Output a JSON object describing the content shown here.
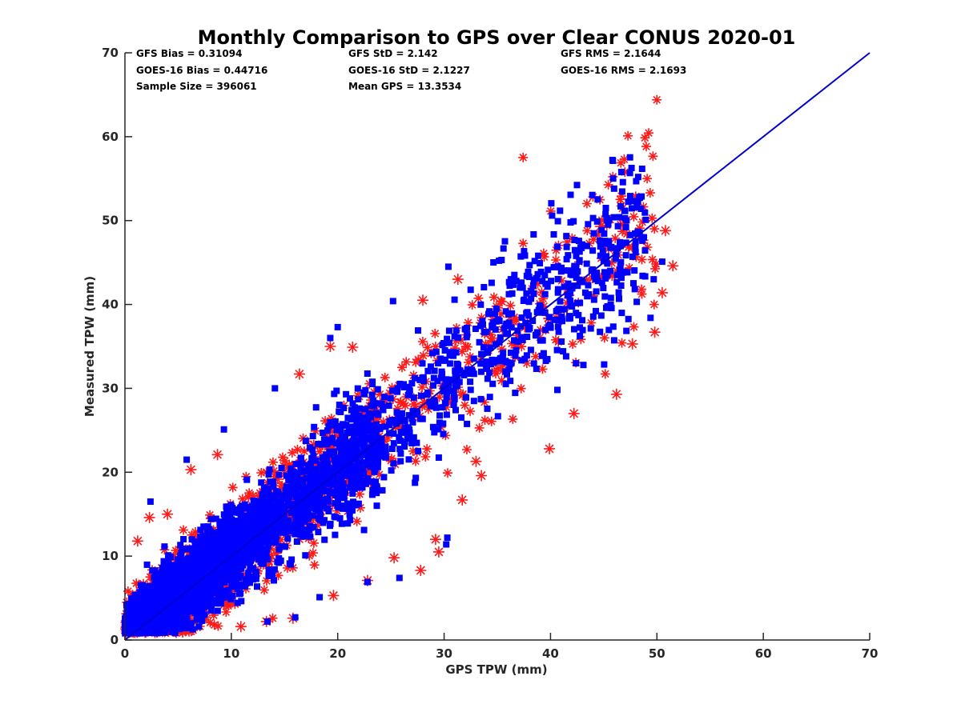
{
  "chart_data": {
    "type": "scatter",
    "title": "Monthly Comparison to GPS over Clear CONUS 2020-01",
    "xlabel": "GPS TPW (mm)",
    "ylabel": "Measured TPW (mm)",
    "xlim": [
      0,
      70
    ],
    "ylim": [
      0,
      70
    ],
    "xticks": [
      0,
      10,
      20,
      30,
      40,
      50,
      60,
      70
    ],
    "yticks": [
      0,
      10,
      20,
      30,
      40,
      50,
      60,
      70
    ],
    "grid": false,
    "legend": "none",
    "stats": {
      "gfs_bias": "GFS Bias = 0.31094",
      "goes_bias": "GOES-16 Bias = 0.44716",
      "sample_size": "Sample Size = 396061",
      "gfs_std": "GFS StD = 2.142",
      "goes_std": "GOES-16 StD = 2.1227",
      "mean_gps": "Mean GPS = 13.3534",
      "gfs_rms": "GFS RMS = 2.1644",
      "goes_rms": "GOES-16 RMS = 2.1693"
    },
    "series": [
      {
        "name": "GFS",
        "marker": "asterisk",
        "color": "#ff1a1a",
        "sample_size": 396061,
        "bias": 0.31094,
        "std": 2.142,
        "x_range": [
          0,
          52
        ],
        "outliers": [
          {
            "x": 51.5,
            "y": 44.6
          },
          {
            "x": 50.8,
            "y": 48.8
          },
          {
            "x": 50.5,
            "y": 41.4
          },
          {
            "x": 49.8,
            "y": 36.7
          },
          {
            "x": 47.7,
            "y": 35.3
          },
          {
            "x": 46.2,
            "y": 29.3
          },
          {
            "x": 42.2,
            "y": 27.0
          },
          {
            "x": 39.9,
            "y": 22.8
          },
          {
            "x": 33.5,
            "y": 19.6
          },
          {
            "x": 33.0,
            "y": 21.3
          },
          {
            "x": 31.7,
            "y": 16.7
          },
          {
            "x": 29.2,
            "y": 12.0
          },
          {
            "x": 29.5,
            "y": 10.5
          },
          {
            "x": 27.8,
            "y": 8.3
          },
          {
            "x": 25.3,
            "y": 9.8
          },
          {
            "x": 22.8,
            "y": 7.1
          },
          {
            "x": 19.6,
            "y": 5.3
          },
          {
            "x": 15.8,
            "y": 2.6
          },
          {
            "x": 13.3,
            "y": 2.2
          },
          {
            "x": 10.9,
            "y": 1.6
          },
          {
            "x": 6.2,
            "y": 20.3
          },
          {
            "x": 8.7,
            "y": 22.1
          },
          {
            "x": 16.4,
            "y": 31.7
          },
          {
            "x": 21.4,
            "y": 34.9
          },
          {
            "x": 28.0,
            "y": 40.5
          },
          {
            "x": 31.3,
            "y": 43.0
          },
          {
            "x": 44.7,
            "y": 49.3
          },
          {
            "x": 46.8,
            "y": 49.6
          },
          {
            "x": 2.3,
            "y": 14.6
          },
          {
            "x": 1.2,
            "y": 11.8
          },
          {
            "x": 19.3,
            "y": 35.0
          },
          {
            "x": 4.0,
            "y": 15.0
          }
        ]
      },
      {
        "name": "GOES-16",
        "marker": "square",
        "color": "#0000ff",
        "sample_size": 396061,
        "bias": 0.44716,
        "std": 2.1227,
        "x_range": [
          0,
          51
        ],
        "outliers": [
          {
            "x": 46.6,
            "y": 51.7
          },
          {
            "x": 45.2,
            "y": 51.5
          },
          {
            "x": 44.0,
            "y": 50.3
          },
          {
            "x": 30.4,
            "y": 44.5
          },
          {
            "x": 20.0,
            "y": 37.3
          },
          {
            "x": 14.1,
            "y": 30.0
          },
          {
            "x": 9.3,
            "y": 25.1
          },
          {
            "x": 5.8,
            "y": 21.5
          },
          {
            "x": 2.4,
            "y": 16.5
          },
          {
            "x": 30.3,
            "y": 12.2
          },
          {
            "x": 30.2,
            "y": 11.4
          },
          {
            "x": 25.8,
            "y": 7.4
          },
          {
            "x": 22.8,
            "y": 6.9
          },
          {
            "x": 18.3,
            "y": 5.1
          },
          {
            "x": 16.0,
            "y": 2.7
          },
          {
            "x": 13.4,
            "y": 2.2
          },
          {
            "x": 50.5,
            "y": 45.1
          },
          {
            "x": 49.7,
            "y": 43.0
          },
          {
            "x": 49.4,
            "y": 38.4
          },
          {
            "x": 41.3,
            "y": 42.1
          },
          {
            "x": 38.8,
            "y": 43.6
          },
          {
            "x": 35.4,
            "y": 45.3
          },
          {
            "x": 25.2,
            "y": 40.4
          },
          {
            "x": 19.3,
            "y": 36.0
          }
        ]
      },
      {
        "name": "1:1 line",
        "type": "line",
        "color": "#0000cd",
        "x": [
          0,
          70
        ],
        "y": [
          0,
          70
        ]
      }
    ]
  }
}
